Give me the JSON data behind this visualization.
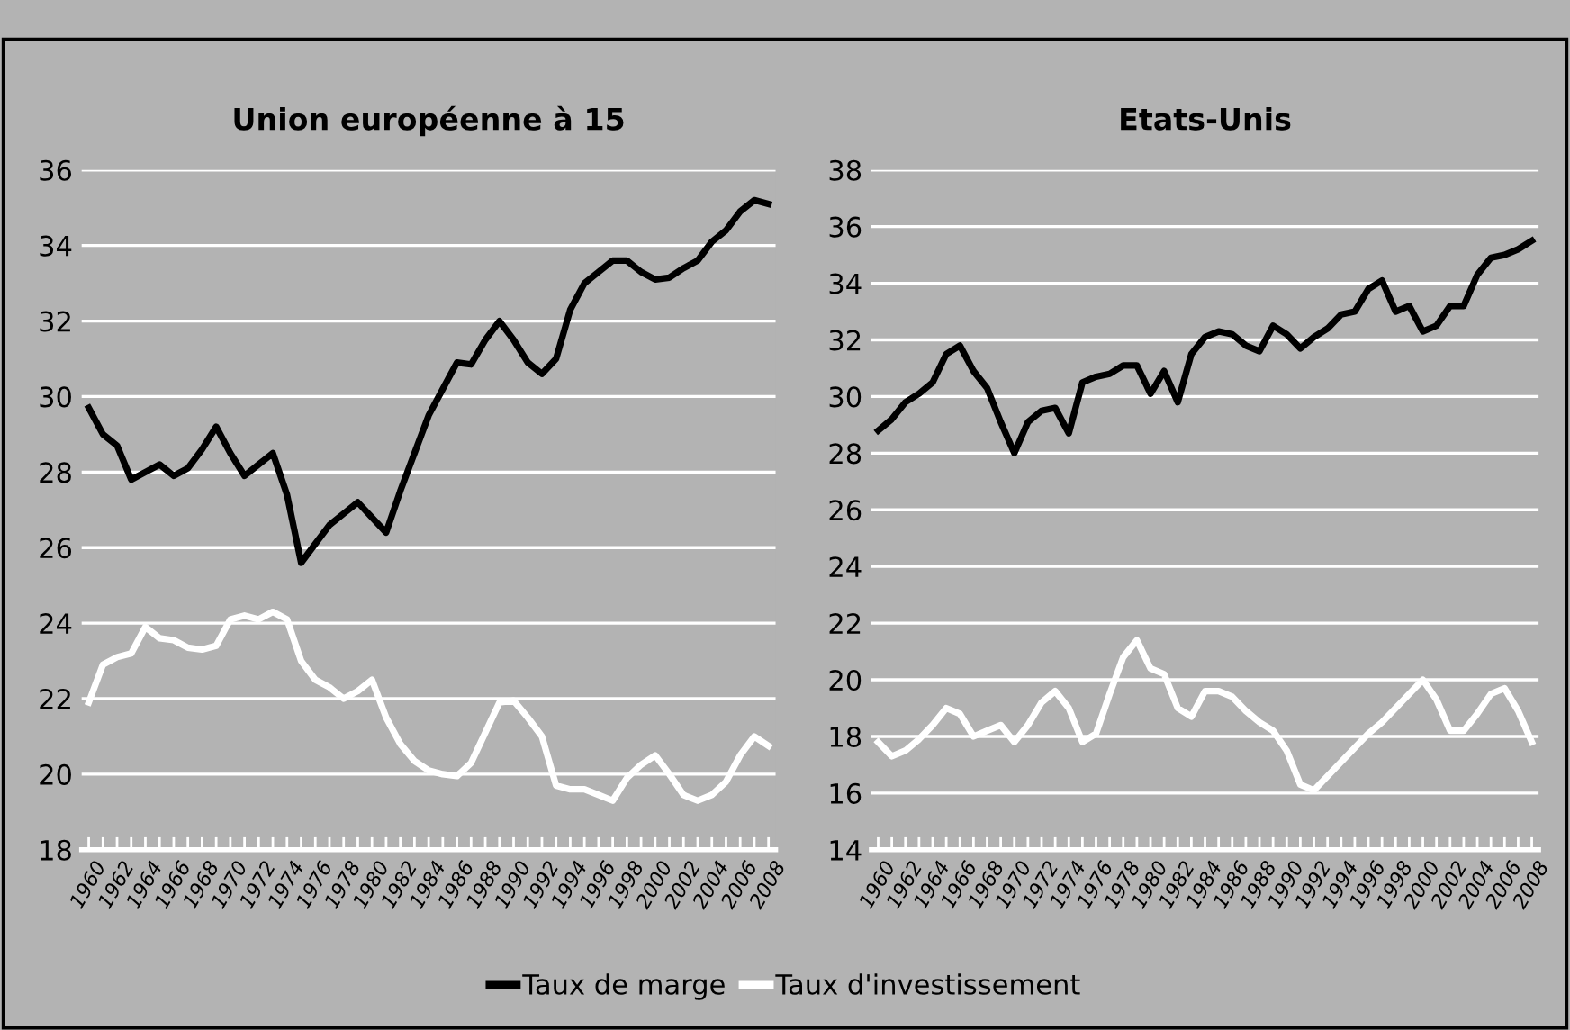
{
  "chart_data": [
    {
      "type": "line",
      "title": "Union européenne à 15",
      "legend": "bottom",
      "grid": "y",
      "x": [
        1960,
        1961,
        1962,
        1963,
        1964,
        1965,
        1966,
        1967,
        1968,
        1969,
        1970,
        1971,
        1972,
        1973,
        1974,
        1975,
        1976,
        1977,
        1978,
        1979,
        1980,
        1981,
        1982,
        1983,
        1984,
        1985,
        1986,
        1987,
        1988,
        1989,
        1990,
        1991,
        1992,
        1993,
        1994,
        1995,
        1996,
        1997,
        1998,
        1999,
        2000,
        2001,
        2002,
        2003,
        2004,
        2005,
        2006,
        2007,
        2008
      ],
      "xlim": [
        1959.5,
        2008.5
      ],
      "xticks": [
        1960,
        {
          "value": 1961,
          "label": null
        },
        1962,
        {
          "value": 1963,
          "label": null
        },
        1964,
        {
          "value": 1965,
          "label": null
        },
        1966,
        {
          "value": 1967,
          "label": null
        },
        1968,
        {
          "value": 1969,
          "label": null
        },
        1970,
        {
          "value": 1971,
          "label": null
        },
        1972,
        {
          "value": 1973,
          "label": null
        },
        1974,
        {
          "value": 1975,
          "label": null
        },
        1976,
        {
          "value": 1977,
          "label": null
        },
        1978,
        {
          "value": 1979,
          "label": null
        },
        1980,
        {
          "value": 1981,
          "label": null
        },
        1982,
        {
          "value": 1983,
          "label": null
        },
        1984,
        {
          "value": 1985,
          "label": null
        },
        1986,
        {
          "value": 1987,
          "label": null
        },
        1988,
        {
          "value": 1989,
          "label": null
        },
        1990,
        {
          "value": 1991,
          "label": null
        },
        1992,
        {
          "value": 1993,
          "label": null
        },
        1994,
        {
          "value": 1995,
          "label": null
        },
        1996,
        {
          "value": 1997,
          "label": null
        },
        1998,
        {
          "value": 1999,
          "label": null
        },
        2000,
        {
          "value": 2001,
          "label": null
        },
        2002,
        {
          "value": 2003,
          "label": null
        },
        2004,
        {
          "value": 2005,
          "label": null
        },
        2006,
        {
          "value": 2007,
          "label": null
        },
        2008
      ],
      "ylim": [
        18,
        36
      ],
      "yticks": [
        18,
        20,
        22,
        24,
        26,
        28,
        30,
        32,
        34,
        36
      ],
      "series": [
        {
          "name": "Taux de marge",
          "color": "#000000",
          "values": [
            29.7,
            29.0,
            28.7,
            27.8,
            28.0,
            28.2,
            27.9,
            28.1,
            28.6,
            29.2,
            28.5,
            27.9,
            28.2,
            28.5,
            27.4,
            25.6,
            26.1,
            26.6,
            26.9,
            27.2,
            26.8,
            26.4,
            27.5,
            28.5,
            29.5,
            30.2,
            30.9,
            30.85,
            31.5,
            32.0,
            31.5,
            30.9,
            30.6,
            31.0,
            32.3,
            33.0,
            33.3,
            33.6,
            33.6,
            33.3,
            33.1,
            33.15,
            33.4,
            33.6,
            34.1,
            34.4,
            34.9,
            35.2,
            35.1
          ]
        },
        {
          "name": "Taux d'investissement",
          "color": "#ffffff",
          "values": [
            21.9,
            22.9,
            23.1,
            23.2,
            23.9,
            23.6,
            23.55,
            23.35,
            23.3,
            23.4,
            24.1,
            24.2,
            24.1,
            24.3,
            24.1,
            23.0,
            22.5,
            22.3,
            22.0,
            22.2,
            22.5,
            21.5,
            20.8,
            20.35,
            20.1,
            20.0,
            19.95,
            20.3,
            21.1,
            21.9,
            21.95,
            21.5,
            21.0,
            19.7,
            19.6,
            19.6,
            19.45,
            19.3,
            19.9,
            20.25,
            20.5,
            20.0,
            19.45,
            19.3,
            19.45,
            19.8,
            20.5,
            21.0,
            20.75
          ]
        }
      ]
    },
    {
      "type": "line",
      "title": "Etats-Unis",
      "grid": "y",
      "x": [
        1960,
        1961,
        1962,
        1963,
        1964,
        1965,
        1966,
        1967,
        1968,
        1969,
        1970,
        1971,
        1972,
        1973,
        1974,
        1975,
        1976,
        1977,
        1978,
        1979,
        1980,
        1981,
        1982,
        1983,
        1984,
        1985,
        1986,
        1987,
        1988,
        1989,
        1990,
        1991,
        1992,
        1993,
        1994,
        1995,
        1996,
        1997,
        1998,
        1999,
        2000,
        2001,
        2002,
        2003,
        2004,
        2005,
        2006,
        2007,
        2008
      ],
      "xlim": [
        1959.5,
        2008.5
      ],
      "xticks": [
        1960,
        {
          "value": 1961,
          "label": null
        },
        1962,
        {
          "value": 1963,
          "label": null
        },
        1964,
        {
          "value": 1965,
          "label": null
        },
        1966,
        {
          "value": 1967,
          "label": null
        },
        1968,
        {
          "value": 1969,
          "label": null
        },
        1970,
        {
          "value": 1971,
          "label": null
        },
        1972,
        {
          "value": 1973,
          "label": null
        },
        1974,
        {
          "value": 1975,
          "label": null
        },
        1976,
        {
          "value": 1977,
          "label": null
        },
        1978,
        {
          "value": 1979,
          "label": null
        },
        1980,
        {
          "value": 1981,
          "label": null
        },
        1982,
        {
          "value": 1983,
          "label": null
        },
        1984,
        {
          "value": 1985,
          "label": null
        },
        1986,
        {
          "value": 1987,
          "label": null
        },
        1988,
        {
          "value": 1989,
          "label": null
        },
        1990,
        {
          "value": 1991,
          "label": null
        },
        1992,
        {
          "value": 1993,
          "label": null
        },
        1994,
        {
          "value": 1995,
          "label": null
        },
        1996,
        {
          "value": 1997,
          "label": null
        },
        1998,
        {
          "value": 1999,
          "label": null
        },
        2000,
        {
          "value": 2001,
          "label": null
        },
        2002,
        {
          "value": 2003,
          "label": null
        },
        2004,
        {
          "value": 2005,
          "label": null
        },
        2006,
        {
          "value": 2007,
          "label": null
        },
        2008
      ],
      "ylim": [
        14,
        38
      ],
      "yticks": [
        14,
        16,
        18,
        20,
        22,
        24,
        26,
        28,
        30,
        32,
        34,
        36,
        38
      ],
      "series": [
        {
          "color": "#000000",
          "values": [
            28.8,
            29.2,
            29.8,
            30.1,
            30.5,
            31.5,
            31.8,
            30.9,
            30.3,
            29.1,
            28.0,
            29.1,
            29.5,
            29.6,
            28.7,
            30.5,
            30.7,
            30.8,
            31.1,
            31.1,
            30.1,
            30.9,
            29.8,
            31.5,
            32.1,
            32.3,
            32.2,
            31.8,
            31.6,
            32.5,
            32.2,
            31.7,
            32.1,
            32.4,
            32.9,
            33.0,
            33.8,
            34.1,
            33.0,
            33.2,
            32.3,
            32.5,
            33.2,
            33.2,
            34.3,
            34.9,
            35.0,
            35.2,
            35.5
          ]
        },
        {
          "color": "#ffffff",
          "values": [
            17.8,
            17.3,
            17.5,
            17.9,
            18.4,
            19.0,
            18.8,
            18.0,
            18.2,
            18.4,
            17.8,
            18.4,
            19.2,
            19.6,
            19.0,
            17.8,
            18.1,
            19.5,
            20.8,
            21.4,
            20.4,
            20.2,
            19.0,
            18.7,
            19.6,
            19.6,
            19.4,
            18.9,
            18.5,
            18.2,
            17.5,
            16.3,
            16.1,
            16.6,
            17.1,
            17.6,
            18.1,
            18.5,
            19.0,
            19.5,
            20.0,
            19.3,
            18.2,
            18.2,
            18.8,
            19.5,
            19.7,
            18.9,
            17.8
          ]
        }
      ]
    }
  ]
}
